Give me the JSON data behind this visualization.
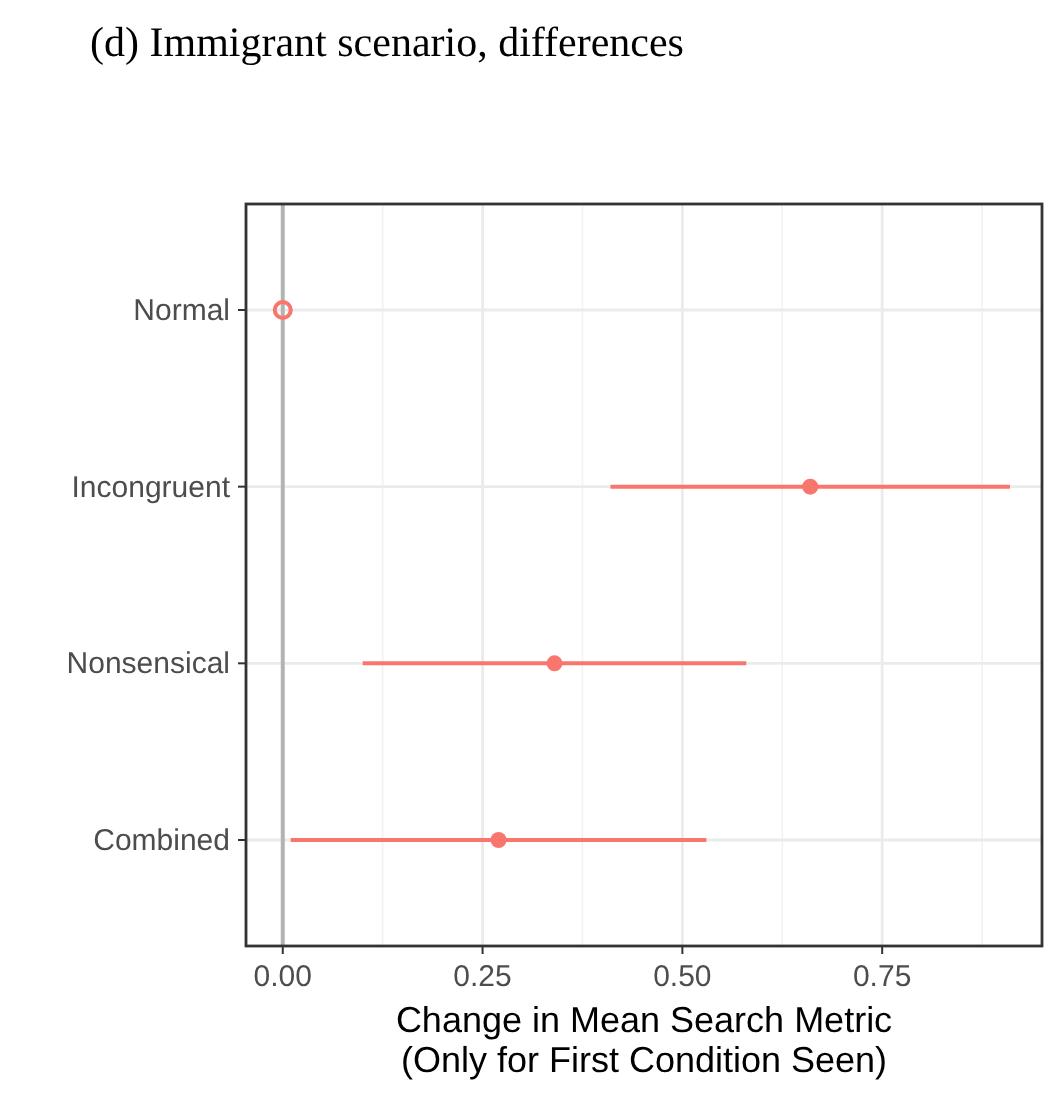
{
  "chart_data": {
    "type": "scatter",
    "title": "(d) Immigrant scenario, differences",
    "xlabel": "Change in Mean Search Metric\n(Only for First Condition Seen)",
    "orientation": "horizontal",
    "categories": [
      "Normal",
      "Incongruent",
      "Nonsensical",
      "Combined"
    ],
    "series": [
      {
        "color": "#f8766d",
        "values": [
          0,
          0.66,
          0.34,
          0.27
        ],
        "errors": [
          null,
          [
            0.41,
            0.91
          ],
          [
            0.1,
            0.58
          ],
          [
            0.01,
            0.53
          ]
        ]
      }
    ],
    "xlim": [
      -0.046,
      0.95
    ],
    "xticks": [
      {
        "value": 0,
        "label": "0.00"
      },
      {
        "value": 0.25,
        "label": "0.25"
      },
      {
        "value": 0.5,
        "label": "0.50"
      },
      {
        "value": 0.75,
        "label": "0.75"
      }
    ],
    "grid": true,
    "marker": "circle",
    "ref_lines": [
      {
        "axis": "x",
        "value": 0,
        "color": "#b3b3b3"
      }
    ]
  }
}
